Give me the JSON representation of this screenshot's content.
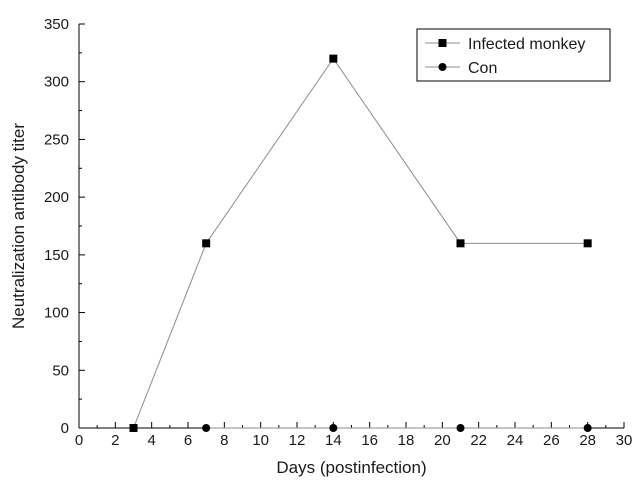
{
  "chart_data": {
    "type": "line",
    "xlabel": "Days (postinfection)",
    "ylabel": "Neutralization antibody titer",
    "xlim": [
      0,
      30
    ],
    "ylim": [
      0,
      350
    ],
    "x_ticks": [
      0,
      2,
      4,
      6,
      8,
      10,
      12,
      14,
      16,
      18,
      20,
      22,
      24,
      26,
      28,
      30
    ],
    "y_ticks": [
      0,
      50,
      100,
      150,
      200,
      250,
      300,
      350
    ],
    "grid": false,
    "legend_position": "top-right",
    "series": [
      {
        "name": "Infected monkey",
        "marker": "square",
        "color": "#000000",
        "line_color": "#8c8c8c",
        "x": [
          3,
          7,
          14,
          21,
          28
        ],
        "y": [
          0,
          160,
          320,
          160,
          160
        ]
      },
      {
        "name": "Con",
        "marker": "circle",
        "color": "#000000",
        "line_color": "#8c8c8c",
        "x": [
          7,
          14,
          21,
          28
        ],
        "y": [
          0,
          0,
          0,
          0
        ]
      }
    ]
  }
}
